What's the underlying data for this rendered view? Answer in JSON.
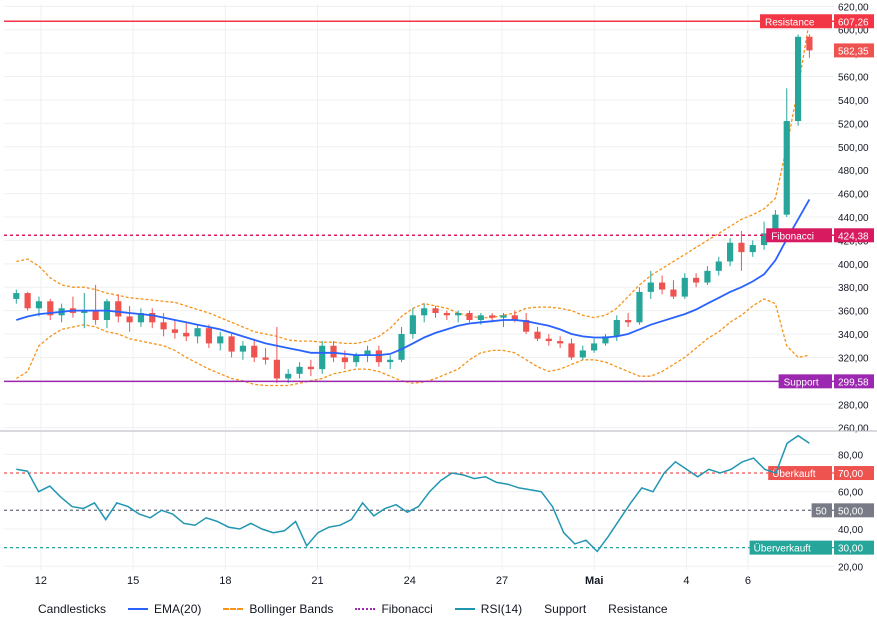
{
  "chart_data": [
    {
      "type": "candlestick",
      "title": "",
      "x_ticks": [
        "12",
        "15",
        "18",
        "21",
        "24",
        "27",
        "Mai",
        "4",
        "6"
      ],
      "y_ticks": [
        "260,00",
        "280,00",
        "300,00",
        "320,00",
        "340,00",
        "360,00",
        "380,00",
        "400,00",
        "420,00",
        "440,00",
        "460,00",
        "480,00",
        "500,00",
        "520,00",
        "540,00",
        "560,00",
        "580,00",
        "600,00",
        "620,00"
      ],
      "ylim": [
        258,
        622
      ],
      "x_range": [
        10.8,
        37.8
      ],
      "last_price_label": "582,35",
      "grid": true,
      "colors": {
        "up": "#26a69a",
        "down": "#ef5350",
        "ema": "#2962ff",
        "bollinger": "#f7931a",
        "fibonacci": "#9c27b0",
        "support": "#9c27b0",
        "resistance": "#f23645",
        "last_price": "#ef5350"
      },
      "candles": [
        {
          "o": 370,
          "h": 378,
          "l": 366,
          "c": 375
        },
        {
          "o": 375,
          "h": 376,
          "l": 360,
          "c": 362
        },
        {
          "o": 362,
          "h": 372,
          "l": 355,
          "c": 368
        },
        {
          "o": 368,
          "h": 370,
          "l": 352,
          "c": 356
        },
        {
          "o": 356,
          "h": 366,
          "l": 350,
          "c": 362
        },
        {
          "o": 362,
          "h": 372,
          "l": 354,
          "c": 358
        },
        {
          "o": 358,
          "h": 375,
          "l": 345,
          "c": 360
        },
        {
          "o": 360,
          "h": 382,
          "l": 348,
          "c": 352
        },
        {
          "o": 352,
          "h": 370,
          "l": 345,
          "c": 368
        },
        {
          "o": 368,
          "h": 374,
          "l": 350,
          "c": 355
        },
        {
          "o": 355,
          "h": 364,
          "l": 342,
          "c": 350
        },
        {
          "o": 350,
          "h": 362,
          "l": 346,
          "c": 358
        },
        {
          "o": 358,
          "h": 362,
          "l": 345,
          "c": 350
        },
        {
          "o": 350,
          "h": 358,
          "l": 338,
          "c": 344
        },
        {
          "o": 344,
          "h": 352,
          "l": 336,
          "c": 341
        },
        {
          "o": 341,
          "h": 350,
          "l": 334,
          "c": 338
        },
        {
          "o": 338,
          "h": 348,
          "l": 332,
          "c": 345
        },
        {
          "o": 345,
          "h": 348,
          "l": 328,
          "c": 332
        },
        {
          "o": 332,
          "h": 342,
          "l": 326,
          "c": 338
        },
        {
          "o": 338,
          "h": 340,
          "l": 320,
          "c": 325
        },
        {
          "o": 325,
          "h": 334,
          "l": 318,
          "c": 330
        },
        {
          "o": 330,
          "h": 336,
          "l": 316,
          "c": 320
        },
        {
          "o": 320,
          "h": 328,
          "l": 314,
          "c": 318
        },
        {
          "o": 318,
          "h": 346,
          "l": 298,
          "c": 302
        },
        {
          "o": 302,
          "h": 310,
          "l": 298,
          "c": 306
        },
        {
          "o": 306,
          "h": 316,
          "l": 302,
          "c": 312
        },
        {
          "o": 312,
          "h": 318,
          "l": 304,
          "c": 310
        },
        {
          "o": 310,
          "h": 334,
          "l": 306,
          "c": 330
        },
        {
          "o": 330,
          "h": 334,
          "l": 316,
          "c": 320
        },
        {
          "o": 320,
          "h": 326,
          "l": 310,
          "c": 316
        },
        {
          "o": 316,
          "h": 324,
          "l": 312,
          "c": 322
        },
        {
          "o": 322,
          "h": 330,
          "l": 316,
          "c": 326
        },
        {
          "o": 326,
          "h": 330,
          "l": 312,
          "c": 316
        },
        {
          "o": 316,
          "h": 322,
          "l": 310,
          "c": 318
        },
        {
          "o": 318,
          "h": 346,
          "l": 316,
          "c": 340
        },
        {
          "o": 340,
          "h": 362,
          "l": 336,
          "c": 356
        },
        {
          "o": 356,
          "h": 366,
          "l": 350,
          "c": 362
        },
        {
          "o": 362,
          "h": 364,
          "l": 354,
          "c": 358
        },
        {
          "o": 358,
          "h": 360,
          "l": 352,
          "c": 356
        },
        {
          "o": 356,
          "h": 360,
          "l": 350,
          "c": 358
        },
        {
          "o": 358,
          "h": 360,
          "l": 350,
          "c": 352
        },
        {
          "o": 352,
          "h": 358,
          "l": 348,
          "c": 356
        },
        {
          "o": 356,
          "h": 358,
          "l": 350,
          "c": 354
        },
        {
          "o": 354,
          "h": 358,
          "l": 346,
          "c": 356
        },
        {
          "o": 356,
          "h": 360,
          "l": 350,
          "c": 352
        },
        {
          "o": 352,
          "h": 358,
          "l": 340,
          "c": 342
        },
        {
          "o": 342,
          "h": 346,
          "l": 334,
          "c": 336
        },
        {
          "o": 336,
          "h": 340,
          "l": 330,
          "c": 334
        },
        {
          "o": 334,
          "h": 338,
          "l": 328,
          "c": 332
        },
        {
          "o": 332,
          "h": 336,
          "l": 318,
          "c": 320
        },
        {
          "o": 320,
          "h": 330,
          "l": 318,
          "c": 326
        },
        {
          "o": 326,
          "h": 336,
          "l": 324,
          "c": 332
        },
        {
          "o": 332,
          "h": 340,
          "l": 330,
          "c": 338
        },
        {
          "o": 338,
          "h": 356,
          "l": 334,
          "c": 352
        },
        {
          "o": 352,
          "h": 358,
          "l": 346,
          "c": 350
        },
        {
          "o": 350,
          "h": 380,
          "l": 348,
          "c": 376
        },
        {
          "o": 376,
          "h": 394,
          "l": 370,
          "c": 384
        },
        {
          "o": 384,
          "h": 390,
          "l": 374,
          "c": 378
        },
        {
          "o": 378,
          "h": 386,
          "l": 370,
          "c": 372
        },
        {
          "o": 372,
          "h": 392,
          "l": 370,
          "c": 388
        },
        {
          "o": 388,
          "h": 392,
          "l": 380,
          "c": 384
        },
        {
          "o": 384,
          "h": 398,
          "l": 382,
          "c": 394
        },
        {
          "o": 394,
          "h": 406,
          "l": 390,
          "c": 402
        },
        {
          "o": 402,
          "h": 422,
          "l": 398,
          "c": 418
        },
        {
          "o": 418,
          "h": 428,
          "l": 394,
          "c": 410
        },
        {
          "o": 410,
          "h": 420,
          "l": 406,
          "c": 416
        },
        {
          "o": 416,
          "h": 436,
          "l": 412,
          "c": 426
        },
        {
          "o": 426,
          "h": 446,
          "l": 420,
          "c": 442
        },
        {
          "o": 442,
          "h": 550,
          "l": 440,
          "c": 522
        },
        {
          "o": 522,
          "h": 596,
          "l": 518,
          "c": 594
        },
        {
          "o": 594,
          "h": 596,
          "l": 576,
          "c": 582.35
        }
      ],
      "ema": [
        352,
        355,
        357,
        358,
        359,
        360,
        360,
        360,
        360,
        359,
        358,
        357,
        356,
        354,
        352,
        350,
        348,
        346,
        344,
        341,
        338,
        335,
        332,
        330,
        328,
        326,
        324,
        324,
        324,
        323,
        322,
        322,
        322,
        323,
        327,
        332,
        337,
        341,
        344,
        347,
        349,
        350,
        351,
        352,
        352,
        351,
        349,
        347,
        344,
        340,
        338,
        337,
        337,
        338,
        340,
        344,
        348,
        351,
        354,
        357,
        361,
        366,
        371,
        376,
        380,
        385,
        391,
        403,
        421,
        438,
        455
      ],
      "bb_upper": [
        402,
        404,
        398,
        388,
        382,
        380,
        380,
        378,
        375,
        373,
        371,
        370,
        369,
        368,
        367,
        364,
        361,
        358,
        354,
        350,
        346,
        342,
        340,
        338,
        335,
        334,
        334,
        333,
        333,
        332,
        332,
        334,
        338,
        345,
        355,
        362,
        366,
        364,
        362,
        358,
        355,
        354,
        354,
        356,
        358,
        362,
        363,
        363,
        362,
        360,
        356,
        354,
        356,
        362,
        372,
        382,
        390,
        396,
        402,
        408,
        414,
        420,
        426,
        432,
        438,
        442,
        447,
        456,
        500,
        550,
        608
      ],
      "bb_lower": [
        302,
        308,
        330,
        338,
        344,
        346,
        348,
        346,
        342,
        340,
        336,
        334,
        332,
        330,
        326,
        320,
        315,
        310,
        306,
        302,
        300,
        297,
        296,
        296,
        296,
        298,
        300,
        302,
        306,
        308,
        310,
        310,
        308,
        304,
        300,
        298,
        299,
        302,
        306,
        310,
        318,
        324,
        326,
        326,
        324,
        318,
        312,
        308,
        310,
        314,
        318,
        318,
        316,
        312,
        308,
        304,
        304,
        308,
        314,
        320,
        328,
        336,
        342,
        350,
        356,
        364,
        370,
        366,
        330,
        320,
        322
      ],
      "support": {
        "value": 299.58,
        "label": "Support",
        "value_label": "299,58"
      },
      "resistance": {
        "value": 607.26,
        "label": "Resistance",
        "value_label": "607,26"
      },
      "fibonacci": {
        "value": 424.38,
        "label": "Fibonacci",
        "value_label": "424,38"
      }
    },
    {
      "type": "line",
      "title": "",
      "y_ticks": [
        "20,00",
        "40,00",
        "60,00",
        "80,00"
      ],
      "ylim": [
        18,
        92
      ],
      "grid": true,
      "series": [
        {
          "name": "RSI(14)",
          "color": "#2196b3",
          "values": [
            72,
            71,
            60,
            63,
            57,
            52,
            51,
            54,
            45,
            54,
            52,
            48,
            46,
            50,
            48,
            43,
            42,
            46,
            44,
            41,
            40,
            43,
            40,
            38,
            39,
            44,
            31,
            38,
            41,
            42,
            45,
            54,
            47,
            51,
            53,
            49,
            52,
            60,
            66,
            70,
            69,
            67,
            68,
            65,
            64,
            62,
            61,
            60,
            52,
            38,
            32,
            34,
            28,
            36,
            45,
            54,
            62,
            60,
            70,
            76,
            72,
            68,
            72,
            70,
            72,
            76,
            78,
            72,
            70,
            86,
            90,
            86
          ]
        }
      ],
      "levels": [
        {
          "value": 70,
          "label": "Überkauft",
          "value_label": "70,00",
          "color": "#ef5350"
        },
        {
          "value": 50,
          "label": "50",
          "value_label": "50,00",
          "color": "#787b86"
        },
        {
          "value": 30,
          "label": "Überverkauft",
          "value_label": "30,00",
          "color": "#26a69a"
        }
      ]
    }
  ],
  "legend": [
    {
      "label": "Candlesticks",
      "swatch": "none",
      "color": "#131722"
    },
    {
      "label": "EMA(20)",
      "swatch": "solid",
      "color": "#2962ff"
    },
    {
      "label": "Bollinger Bands",
      "swatch": "dashed",
      "color": "#f7931a"
    },
    {
      "label": "Fibonacci",
      "swatch": "dotted",
      "color": "#9c27b0"
    },
    {
      "label": "RSI(14)",
      "swatch": "solid",
      "color": "#2196b3"
    },
    {
      "label": "Support",
      "swatch": "none",
      "color": "#131722"
    },
    {
      "label": "Resistance",
      "swatch": "none",
      "color": "#131722"
    }
  ]
}
